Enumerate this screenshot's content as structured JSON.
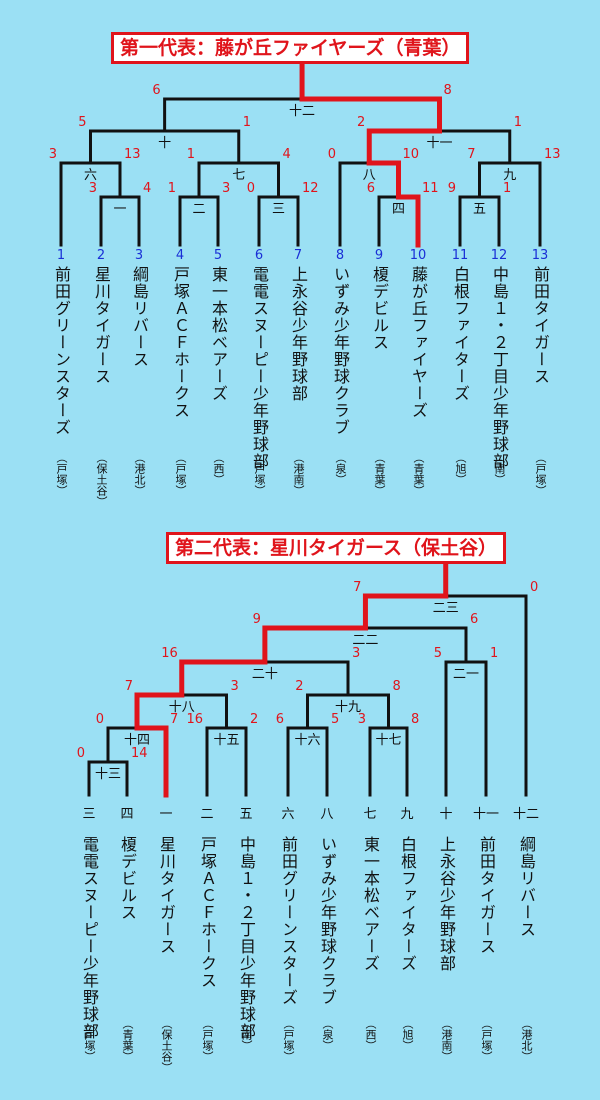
{
  "bracket1": {
    "title": "第一代表：藤が丘ファイヤーズ（青葉）",
    "entries": [
      {
        "seed": "1",
        "team": "前田グリーンスターズ",
        "region": "（戸塚）"
      },
      {
        "seed": "2",
        "team": "星川タイガース",
        "region": "（保土谷）"
      },
      {
        "seed": "3",
        "team": "綱島リバース",
        "region": "（港北）"
      },
      {
        "seed": "4",
        "team": "戸塚ＡＣＦホークス",
        "region": "（戸塚）"
      },
      {
        "seed": "5",
        "team": "東一本松ベアーズ",
        "region": "（西）"
      },
      {
        "seed": "6",
        "team": "電電スヌーピー少年野球部",
        "region": "（戸塚）"
      },
      {
        "seed": "7",
        "team": "上永谷少年野球部",
        "region": "（港南）"
      },
      {
        "seed": "8",
        "team": "いずみ少年野球クラブ",
        "region": "（泉）"
      },
      {
        "seed": "9",
        "team": "榎デビルス",
        "region": "（青葉）"
      },
      {
        "seed": "10",
        "team": "藤が丘ファイヤーズ",
        "region": "（青葉）"
      },
      {
        "seed": "11",
        "team": "白根ファイターズ",
        "region": "（旭）"
      },
      {
        "seed": "12",
        "team": "中島１・２丁目少年野球部",
        "region": "（南）"
      },
      {
        "seed": "13",
        "team": "前田タイガース",
        "region": "（戸塚）"
      }
    ],
    "games": [
      {
        "label": "一",
        "left": "3",
        "right": "4"
      },
      {
        "label": "二",
        "left": "1",
        "right": "3"
      },
      {
        "label": "三",
        "left": "0",
        "right": "12"
      },
      {
        "label": "四",
        "left": "6",
        "right": "11"
      },
      {
        "label": "五",
        "left": "9",
        "right": "1"
      },
      {
        "label": "六",
        "left": "3",
        "right": "13"
      },
      {
        "label": "七",
        "left": "1",
        "right": "4"
      },
      {
        "label": "八",
        "left": "0",
        "right": "10"
      },
      {
        "label": "九",
        "left": "7",
        "right": "13"
      },
      {
        "label": "十",
        "left": "5",
        "right": "1"
      },
      {
        "label": "十一",
        "left": "2",
        "right": "1"
      },
      {
        "label": "十二",
        "left": "6",
        "right": "8"
      }
    ]
  },
  "bracket2": {
    "title": "第二代表：星川タイガース（保土谷）",
    "entries": [
      {
        "seed": "三",
        "team": "電電スヌーピー少年野球部",
        "region": "（戸塚）"
      },
      {
        "seed": "四",
        "team": "榎デビルス",
        "region": "（青葉）"
      },
      {
        "seed": "一",
        "team": "星川タイガース",
        "region": "（保土谷）"
      },
      {
        "seed": "二",
        "team": "戸塚ＡＣＦホークス",
        "region": "（戸塚）"
      },
      {
        "seed": "五",
        "team": "中島１・２丁目少年野球部",
        "region": "（南）"
      },
      {
        "seed": "六",
        "team": "前田グリーンスターズ",
        "region": "（戸塚）"
      },
      {
        "seed": "八",
        "team": "いずみ少年野球クラブ",
        "region": "（泉）"
      },
      {
        "seed": "七",
        "team": "東一本松ベアーズ",
        "region": "（西）"
      },
      {
        "seed": "九",
        "team": "白根ファイターズ",
        "region": "（旭）"
      },
      {
        "seed": "十",
        "team": "上永谷少年野球部",
        "region": "（港南）"
      },
      {
        "seed": "十一",
        "team": "前田タイガース",
        "region": "（戸塚）"
      },
      {
        "seed": "十二",
        "team": "綱島リバース",
        "region": "（港北）"
      }
    ],
    "games": [
      {
        "label": "十三",
        "left": "0",
        "right": "14"
      },
      {
        "label": "十四",
        "left": "0",
        "right": "7"
      },
      {
        "label": "十五",
        "left": "16",
        "right": "2"
      },
      {
        "label": "十六",
        "left": "6",
        "right": "5"
      },
      {
        "label": "十七",
        "left": "3",
        "right": "8"
      },
      {
        "label": "十八",
        "left": "7",
        "right": "3"
      },
      {
        "label": "十九",
        "left": "2",
        "right": "8"
      },
      {
        "label": "二十",
        "left": "16",
        "right": "3"
      },
      {
        "label": "二一",
        "left": "5",
        "right": "1"
      },
      {
        "label": "二二",
        "left": "9",
        "right": "6"
      },
      {
        "label": "二三",
        "left": "7",
        "right": "0"
      }
    ]
  },
  "colors": {
    "background": "#9be0f4",
    "winner": "#e0141b",
    "line": "#111111",
    "seed": "#1a2fd6",
    "score": "#e0141b"
  }
}
